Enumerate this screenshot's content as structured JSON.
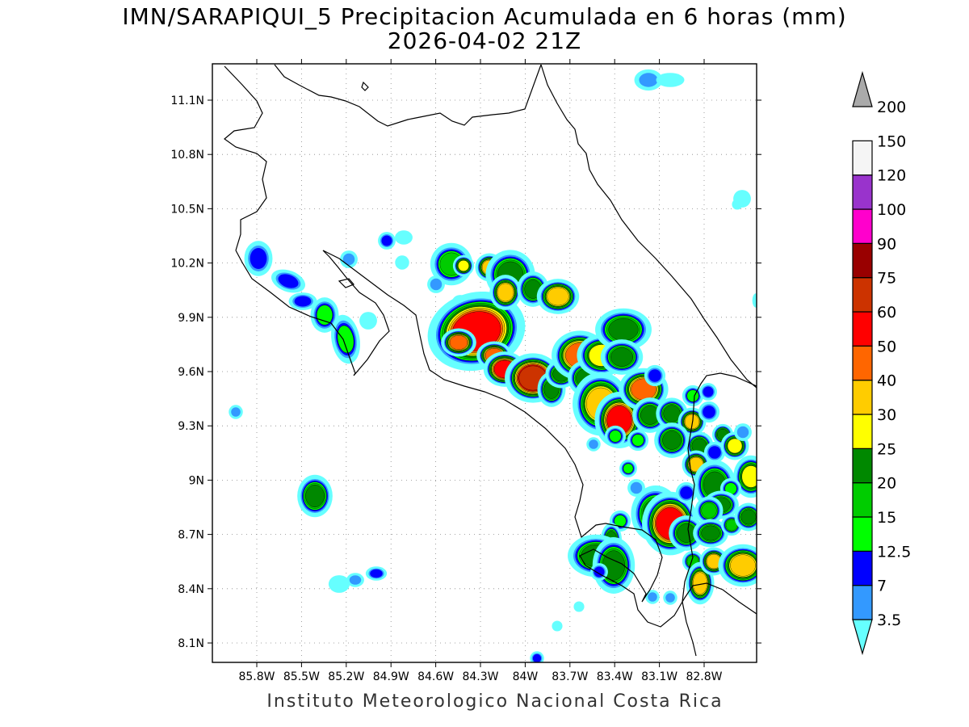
{
  "title": "IMN/SARAPIQUI_5 Precipitacion Acumulada en 6 horas (mm)",
  "subtitle": "2026-04-02 21Z",
  "footer": "Instituto Meteorologico Nacional Costa Rica",
  "axes": {
    "lon_ticks": [
      "85.8W",
      "85.5W",
      "85.2W",
      "84.9W",
      "84.6W",
      "84.3W",
      "84W",
      "83.7W",
      "83.4W",
      "83.1W",
      "82.8W"
    ],
    "lat_ticks": [
      "11.1N",
      "10.8N",
      "10.5N",
      "10.2N",
      "9.9N",
      "9.6N",
      "9.3N",
      "9N",
      "8.7N",
      "8.4N",
      "8.1N"
    ]
  },
  "colorbar": {
    "labels": [
      "3.5",
      "7",
      "12.5",
      "15",
      "20",
      "25",
      "30",
      "40",
      "50",
      "60",
      "75",
      "90",
      "100",
      "120",
      "150",
      "200"
    ],
    "colors": [
      "#66ffff",
      "#3399ff",
      "#0000ff",
      "#00ff00",
      "#00cc00",
      "#008800",
      "#ffff00",
      "#ffcc00",
      "#ff6600",
      "#ff0000",
      "#cc3300",
      "#990000",
      "#ff00cc",
      "#9933cc",
      "#f5f5f5",
      "#aaaaaa"
    ]
  }
}
